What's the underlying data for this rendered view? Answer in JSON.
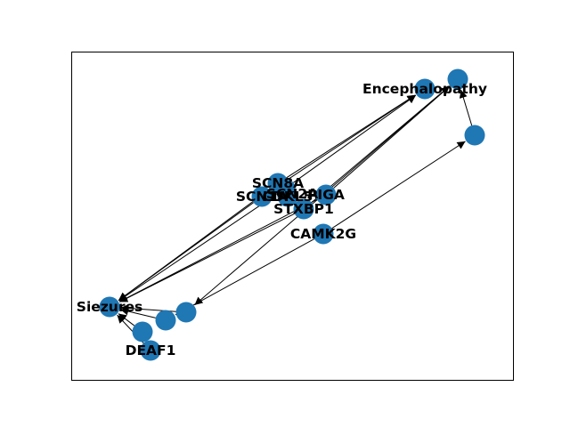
{
  "colors": {
    "node_fill": "#1f77b4",
    "edge": "#000000",
    "frame": "#000000",
    "background": "#ffffff",
    "label": "#000000"
  },
  "graph": {
    "nodes": [
      {
        "id": "Encephalopathy",
        "label": "Encephalopathy"
      },
      {
        "id": "enc_a",
        "label": ""
      },
      {
        "id": "enc_b",
        "label": ""
      },
      {
        "id": "Siezures",
        "label": "Siezures"
      },
      {
        "id": "SCN8A",
        "label": "SCN8A"
      },
      {
        "id": "SCN2A",
        "label": "SCN2A"
      },
      {
        "id": "SCN1A",
        "label": "SCN1A"
      },
      {
        "id": "CDKL5",
        "label": "CDKL5"
      },
      {
        "id": "PIGA",
        "label": "PIGA"
      },
      {
        "id": "STXBP1",
        "label": "STXBP1"
      },
      {
        "id": "CAMK2G",
        "label": "CAMK2G"
      },
      {
        "id": "seiz_a",
        "label": ""
      },
      {
        "id": "seiz_b",
        "label": ""
      },
      {
        "id": "seiz_c",
        "label": ""
      },
      {
        "id": "DEAF1",
        "label": "DEAF1"
      }
    ],
    "edges": [
      {
        "source": "SCN8A",
        "target": "Encephalopathy"
      },
      {
        "source": "SCN8A",
        "target": "Siezures"
      },
      {
        "source": "SCN2A",
        "target": "Encephalopathy"
      },
      {
        "source": "SCN2A",
        "target": "Siezures"
      },
      {
        "source": "SCN1A",
        "target": "Encephalopathy"
      },
      {
        "source": "SCN1A",
        "target": "Siezures"
      },
      {
        "source": "PIGA",
        "target": "enc_a"
      },
      {
        "source": "PIGA",
        "target": "Siezures"
      },
      {
        "source": "STXBP1",
        "target": "enc_a"
      },
      {
        "source": "STXBP1",
        "target": "Siezures"
      },
      {
        "source": "enc_a",
        "target": "seiz_c"
      },
      {
        "source": "CAMK2G",
        "target": "enc_b"
      },
      {
        "source": "CAMK2G",
        "target": "seiz_b"
      },
      {
        "source": "enc_b",
        "target": "enc_a"
      },
      {
        "source": "seiz_b",
        "target": "Siezures"
      },
      {
        "source": "seiz_c",
        "target": "Siezures"
      },
      {
        "source": "seiz_a",
        "target": "Siezures"
      },
      {
        "source": "DEAF1",
        "target": "Siezures"
      }
    ]
  }
}
